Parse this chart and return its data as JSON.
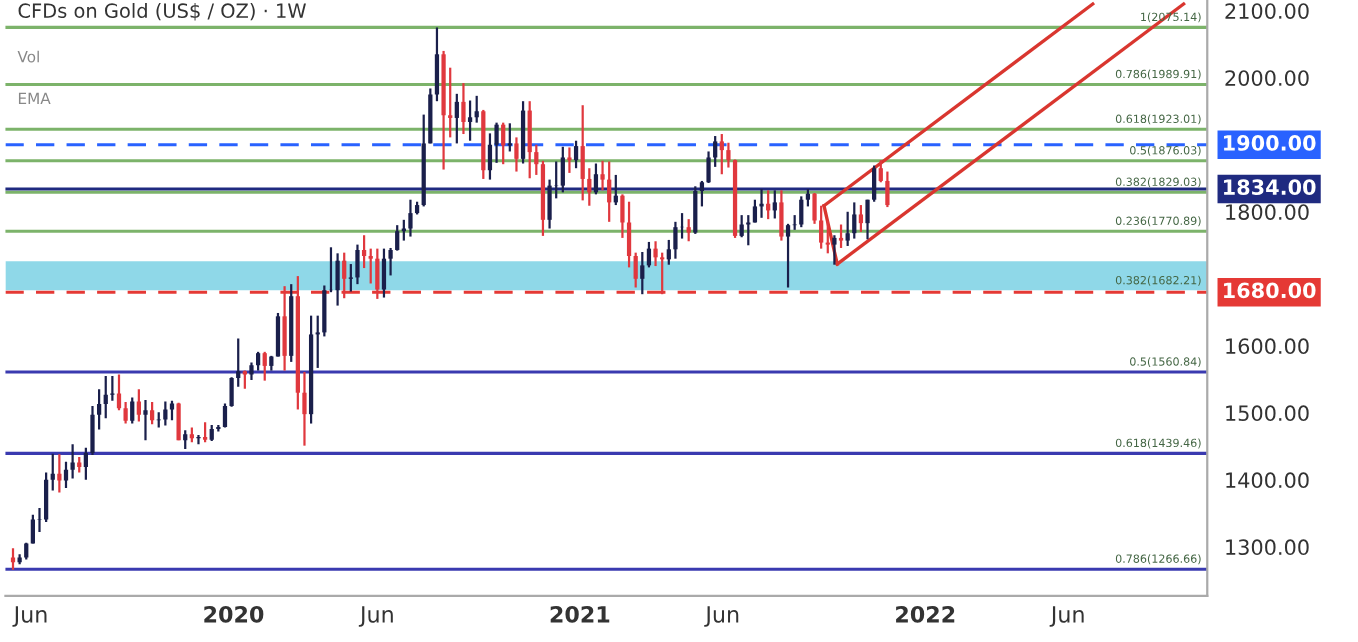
{
  "chart_data": {
    "type": "candlestick",
    "title": "CFDs on Gold (US$ / OZ) · 1W",
    "xlim": [
      "2019-05-05",
      "2022-10-26"
    ],
    "ylim": [
      1227,
      2116
    ],
    "xticks": [
      {
        "value": "2019-06-01",
        "label": "Jun"
      },
      {
        "value": "2020-01-01",
        "label": "2020"
      },
      {
        "value": "2020-06-01",
        "label": "Jun"
      },
      {
        "value": "2021-01-01",
        "label": "2021"
      },
      {
        "value": "2021-06-01",
        "label": "Jun"
      },
      {
        "value": "2022-01-01",
        "label": "2022"
      },
      {
        "value": "2022-06-01",
        "label": "Jun"
      }
    ],
    "yticks": [
      {
        "value": 1300,
        "label": "1300.00"
      },
      {
        "value": 1400,
        "label": "1400.00"
      },
      {
        "value": 1500,
        "label": "1500.00"
      },
      {
        "value": 1600,
        "label": "1600.00"
      },
      {
        "value": 1800,
        "label": "1800.00"
      },
      {
        "value": 2000,
        "label": "2000.00"
      },
      {
        "value": 2100,
        "label": "2100.00"
      }
    ],
    "grid": false,
    "bands": [
      {
        "axis": "y",
        "from": 1683,
        "to": 1726,
        "color": "#8fd8e8"
      }
    ],
    "ref_lines": [
      {
        "axis": "y",
        "value": 2075.14,
        "color": "#7cb36a",
        "line_style": "solid"
      },
      {
        "axis": "y",
        "value": 1989.91,
        "color": "#7cb36a",
        "line_style": "solid"
      },
      {
        "axis": "y",
        "value": 1923.01,
        "color": "#7cb36a",
        "line_style": "solid"
      },
      {
        "axis": "y",
        "value": 1876.03,
        "color": "#7cb36a",
        "line_style": "solid"
      },
      {
        "axis": "y",
        "value": 1829.03,
        "color": "#7cb36a",
        "line_style": "solid"
      },
      {
        "axis": "y",
        "value": 1770.89,
        "color": "#7cb36a",
        "line_style": "solid"
      },
      {
        "axis": "y",
        "value": 1560.84,
        "color": "#3a3ab0",
        "line_style": "solid"
      },
      {
        "axis": "y",
        "value": 1439.46,
        "color": "#3a3ab0",
        "line_style": "solid"
      },
      {
        "axis": "y",
        "value": 1266.66,
        "color": "#3a3ab0",
        "line_style": "solid"
      },
      {
        "axis": "y",
        "value": 1900,
        "label": "1900.00",
        "color": "#2962ff",
        "line_style": "dashed"
      },
      {
        "axis": "y",
        "value": 1834,
        "label": "1834.00",
        "color": "#1f2a80",
        "line_style": "solid"
      },
      {
        "axis": "y",
        "value": 1680,
        "label": "1680.00",
        "color": "#e53935",
        "line_style": "dashed"
      }
    ],
    "annotations": [
      "Vol",
      "EMA",
      {
        "text": "1(2075.14)",
        "x": "2022-10-20",
        "y": 2075.14
      },
      {
        "text": "0.786(1989.91)",
        "x": "2022-10-20",
        "y": 1989.91
      },
      {
        "text": "0.618(1923.01)",
        "x": "2022-10-20",
        "y": 1923.01
      },
      {
        "text": "0.5(1876.03)",
        "x": "2022-10-20",
        "y": 1876.03
      },
      {
        "text": "0.382(1829.03)",
        "x": "2022-10-20",
        "y": 1829.03
      },
      {
        "text": "0.236(1770.89)",
        "x": "2022-10-20",
        "y": 1770.89
      },
      {
        "text": "0.382(1682.21)",
        "x": "2022-10-20",
        "y": 1682.21
      },
      {
        "text": "0.5(1560.84)",
        "x": "2022-10-20",
        "y": 1560.84
      },
      {
        "text": "0.618(1439.46)",
        "x": "2022-10-20",
        "y": 1439.46
      },
      {
        "text": "0.786(1266.66)",
        "x": "2022-10-20",
        "y": 1266.66
      }
    ],
    "series": [
      {
        "color": "#1a1f4b",
        "x": [
          "2019-05-20",
          "2019-05-27",
          "2019-06-03",
          "2019-06-10",
          "2019-06-17",
          "2019-06-24",
          "2019-07-08",
          "2019-07-15",
          "2019-07-29",
          "2019-08-05",
          "2019-08-12",
          "2019-08-19",
          "2019-08-26",
          "2019-09-16",
          "2019-09-30",
          "2019-10-14",
          "2019-10-21",
          "2019-10-28",
          "2019-11-11",
          "2019-11-25",
          "2019-12-09",
          "2019-12-16",
          "2019-12-23",
          "2019-12-30",
          "2020-01-06",
          "2020-01-20",
          "2020-01-27",
          "2020-02-10",
          "2020-02-17",
          "2020-03-02",
          "2020-03-23",
          "2020-03-30",
          "2020-04-06",
          "2020-04-13",
          "2020-04-20",
          "2020-05-04",
          "2020-05-11",
          "2020-06-08",
          "2020-06-15",
          "2020-06-22",
          "2020-06-29",
          "2020-07-06",
          "2020-07-13",
          "2020-07-20",
          "2020-07-27",
          "2020-08-03",
          "2020-08-24",
          "2020-09-07",
          "2020-09-14",
          "2020-09-28",
          "2020-10-05",
          "2020-10-19",
          "2020-11-02",
          "2020-11-30",
          "2020-12-07",
          "2020-12-14",
          "2020-12-28",
          "2021-01-18",
          "2021-02-08",
          "2021-03-08",
          "2021-03-15",
          "2021-04-05",
          "2021-04-12",
          "2021-04-19",
          "2021-05-03",
          "2021-05-10",
          "2021-05-17",
          "2021-05-24",
          "2021-06-21",
          "2021-06-28",
          "2021-07-05",
          "2021-07-12",
          "2021-07-26",
          "2021-08-09",
          "2021-08-16",
          "2021-08-23",
          "2021-08-30",
          "2021-09-27",
          "2021-10-11",
          "2021-10-18",
          "2021-11-01",
          "2021-11-08"
        ],
        "ohlc": [
          [
            1277,
            1289,
            1274,
            1284
          ],
          [
            1284,
            1306,
            1281,
            1305
          ],
          [
            1305,
            1348,
            1305,
            1341
          ],
          [
            1341,
            1358,
            1322,
            1341
          ],
          [
            1341,
            1411,
            1337,
            1400
          ],
          [
            1400,
            1439,
            1384,
            1409
          ],
          [
            1399,
            1427,
            1388,
            1415
          ],
          [
            1415,
            1453,
            1402,
            1426
          ],
          [
            1419,
            1448,
            1400,
            1440
          ],
          [
            1440,
            1510,
            1437,
            1497
          ],
          [
            1497,
            1535,
            1475,
            1513
          ],
          [
            1513,
            1555,
            1492,
            1527
          ],
          [
            1527,
            1555,
            1518,
            1529
          ],
          [
            1488,
            1523,
            1484,
            1517
          ],
          [
            1497,
            1519,
            1459,
            1504
          ],
          [
            1489,
            1501,
            1478,
            1490
          ],
          [
            1490,
            1517,
            1481,
            1505
          ],
          [
            1505,
            1518,
            1489,
            1514
          ],
          [
            1459,
            1474,
            1446,
            1468
          ],
          [
            1462,
            1467,
            1453,
            1464
          ],
          [
            1460,
            1482,
            1458,
            1476
          ],
          [
            1476,
            1482,
            1472,
            1479
          ],
          [
            1479,
            1514,
            1478,
            1510
          ],
          [
            1510,
            1553,
            1509,
            1552
          ],
          [
            1552,
            1611,
            1539,
            1562
          ],
          [
            1557,
            1575,
            1549,
            1571
          ],
          [
            1571,
            1591,
            1563,
            1589
          ],
          [
            1570,
            1585,
            1563,
            1584
          ],
          [
            1584,
            1649,
            1584,
            1644
          ],
          [
            1585,
            1692,
            1576,
            1674
          ],
          [
            1498,
            1645,
            1484,
            1617
          ],
          [
            1617,
            1645,
            1567,
            1620
          ],
          [
            1620,
            1690,
            1614,
            1683
          ],
          [
            1683,
            1747,
            1680,
            1683
          ],
          [
            1683,
            1738,
            1660,
            1727
          ],
          [
            1700,
            1722,
            1681,
            1702
          ],
          [
            1702,
            1751,
            1692,
            1743
          ],
          [
            1684,
            1745,
            1672,
            1730
          ],
          [
            1730,
            1746,
            1705,
            1743
          ],
          [
            1743,
            1780,
            1742,
            1771
          ],
          [
            1771,
            1788,
            1757,
            1775
          ],
          [
            1775,
            1818,
            1763,
            1798
          ],
          [
            1798,
            1815,
            1796,
            1810
          ],
          [
            1810,
            1945,
            1808,
            1902
          ],
          [
            1902,
            1984,
            1902,
            1975
          ],
          [
            1975,
            2075,
            1965,
            2035
          ],
          [
            1940,
            1976,
            1902,
            1964
          ],
          [
            1934,
            1966,
            1906,
            1941
          ],
          [
            1941,
            1973,
            1933,
            1950
          ],
          [
            1862,
            1917,
            1848,
            1900
          ],
          [
            1900,
            1933,
            1873,
            1930
          ],
          [
            1899,
            1932,
            1890,
            1902
          ],
          [
            1879,
            1965,
            1872,
            1951
          ],
          [
            1788,
            1848,
            1775,
            1839
          ],
          [
            1839,
            1875,
            1820,
            1839
          ],
          [
            1839,
            1897,
            1829,
            1881
          ],
          [
            1877,
            1906,
            1865,
            1898
          ],
          [
            1829,
            1872,
            1826,
            1856
          ],
          [
            1814,
            1855,
            1810,
            1824
          ],
          [
            1700,
            1740,
            1677,
            1720
          ],
          [
            1720,
            1755,
            1717,
            1745
          ],
          [
            1729,
            1758,
            1721,
            1744
          ],
          [
            1744,
            1785,
            1730,
            1777
          ],
          [
            1777,
            1798,
            1760,
            1777
          ],
          [
            1769,
            1838,
            1767,
            1831
          ],
          [
            1831,
            1846,
            1808,
            1844
          ],
          [
            1844,
            1890,
            1843,
            1881
          ],
          [
            1881,
            1913,
            1867,
            1905
          ],
          [
            1764,
            1795,
            1762,
            1781
          ],
          [
            1781,
            1795,
            1750,
            1784
          ],
          [
            1784,
            1818,
            1784,
            1808
          ],
          [
            1808,
            1834,
            1791,
            1812
          ],
          [
            1802,
            1832,
            1790,
            1814
          ],
          [
            1763,
            1782,
            1687,
            1780
          ],
          [
            1780,
            1795,
            1773,
            1781
          ],
          [
            1781,
            1823,
            1777,
            1818
          ],
          [
            1818,
            1834,
            1808,
            1827
          ],
          [
            1751,
            1765,
            1721,
            1761
          ],
          [
            1757,
            1800,
            1749,
            1768
          ],
          [
            1768,
            1814,
            1760,
            1796
          ],
          [
            1783,
            1818,
            1759,
            1818
          ],
          [
            1818,
            1869,
            1815,
            1865
          ]
        ]
      },
      {
        "color": "#e0383e",
        "x": [
          "2019-05-13",
          "2019-07-01",
          "2019-07-22",
          "2019-09-02",
          "2019-09-09",
          "2019-09-23",
          "2019-10-07",
          "2019-11-04",
          "2019-11-18",
          "2019-12-02",
          "2020-01-13",
          "2020-02-03",
          "2020-02-24",
          "2020-03-09",
          "2020-03-16",
          "2020-04-27",
          "2020-05-18",
          "2020-05-25",
          "2020-06-01",
          "2020-08-10",
          "2020-08-17",
          "2020-08-31",
          "2020-09-21",
          "2020-10-12",
          "2020-10-26",
          "2020-11-09",
          "2020-11-16",
          "2020-11-23",
          "2020-12-21",
          "2021-01-04",
          "2021-01-11",
          "2021-01-25",
          "2021-02-01",
          "2021-02-15",
          "2021-02-22",
          "2021-03-01",
          "2021-03-22",
          "2021-03-29",
          "2021-04-26",
          "2021-05-31",
          "2021-06-07",
          "2021-06-14",
          "2021-07-19",
          "2021-08-02",
          "2021-09-06",
          "2021-09-13",
          "2021-09-20",
          "2021-10-04",
          "2021-10-25",
          "2021-11-15",
          "2021-11-22"
        ],
        "ohlc": [
          [
            1284,
            1298,
            1266,
            1277
          ],
          [
            1409,
            1438,
            1381,
            1399
          ],
          [
            1426,
            1434,
            1411,
            1419
          ],
          [
            1529,
            1557,
            1504,
            1507
          ],
          [
            1507,
            1516,
            1484,
            1488
          ],
          [
            1517,
            1535,
            1487,
            1497
          ],
          [
            1504,
            1516,
            1483,
            1489
          ],
          [
            1514,
            1515,
            1459,
            1459
          ],
          [
            1468,
            1478,
            1456,
            1462
          ],
          [
            1464,
            1486,
            1456,
            1460
          ],
          [
            1562,
            1563,
            1536,
            1557
          ],
          [
            1589,
            1591,
            1548,
            1570
          ],
          [
            1644,
            1689,
            1563,
            1585
          ],
          [
            1674,
            1704,
            1505,
            1530
          ],
          [
            1530,
            1561,
            1451,
            1498
          ],
          [
            1727,
            1739,
            1671,
            1700
          ],
          [
            1743,
            1765,
            1716,
            1734
          ],
          [
            1734,
            1745,
            1693,
            1730
          ],
          [
            1730,
            1745,
            1670,
            1684
          ],
          [
            2035,
            2040,
            1863,
            1944
          ],
          [
            1944,
            2015,
            1911,
            1940
          ],
          [
            1964,
            1992,
            1916,
            1934
          ],
          [
            1950,
            1952,
            1849,
            1862
          ],
          [
            1930,
            1933,
            1871,
            1899
          ],
          [
            1902,
            1911,
            1860,
            1879
          ],
          [
            1951,
            1965,
            1850,
            1889
          ],
          [
            1889,
            1900,
            1855,
            1871
          ],
          [
            1871,
            1876,
            1764,
            1788
          ],
          [
            1881,
            1896,
            1858,
            1877
          ],
          [
            1898,
            1959,
            1817,
            1849
          ],
          [
            1849,
            1865,
            1809,
            1829
          ],
          [
            1856,
            1876,
            1832,
            1848
          ],
          [
            1848,
            1875,
            1785,
            1814
          ],
          [
            1824,
            1826,
            1761,
            1784
          ],
          [
            1784,
            1815,
            1717,
            1734
          ],
          [
            1734,
            1739,
            1687,
            1700
          ],
          [
            1745,
            1756,
            1719,
            1732
          ],
          [
            1732,
            1739,
            1677,
            1729
          ],
          [
            1777,
            1789,
            1756,
            1769
          ],
          [
            1905,
            1916,
            1856,
            1892
          ],
          [
            1892,
            1903,
            1866,
            1877
          ],
          [
            1877,
            1878,
            1761,
            1764
          ],
          [
            1812,
            1832,
            1789,
            1802
          ],
          [
            1814,
            1832,
            1757,
            1763
          ],
          [
            1827,
            1828,
            1782,
            1787
          ],
          [
            1787,
            1809,
            1745,
            1754
          ],
          [
            1754,
            1787,
            1738,
            1751
          ],
          [
            1761,
            1781,
            1746,
            1757
          ],
          [
            1796,
            1810,
            1770,
            1783
          ],
          [
            1865,
            1877,
            1844,
            1846
          ],
          [
            1846,
            1860,
            1807,
            1810
          ]
        ]
      },
      {
        "type": "line",
        "color": "#d9362f",
        "x": [
          "2021-09-16",
          "2022-06-27"
        ],
        "values": [
          1809,
          2110
        ]
      },
      {
        "type": "line",
        "color": "#d9362f",
        "x": [
          "2021-09-30",
          "2022-10-01"
        ],
        "values": [
          1722,
          2110
        ]
      },
      {
        "type": "line",
        "color": "#d9362f",
        "x": [
          "2021-09-16",
          "2021-09-30"
        ],
        "values": [
          1809,
          1722
        ]
      }
    ]
  }
}
